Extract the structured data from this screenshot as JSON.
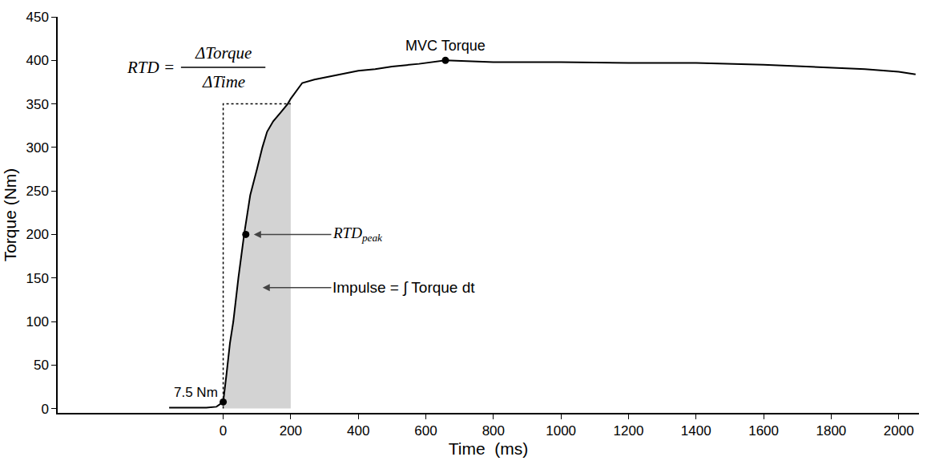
{
  "chart_data": {
    "type": "line",
    "x_label": "Time  (ms)",
    "y_label": "Torque (Nm)",
    "xlim": [
      -490,
      2060
    ],
    "ylim": [
      -5,
      450
    ],
    "xticks": [
      0,
      200,
      400,
      600,
      800,
      1000,
      1200,
      1400,
      1600,
      1800,
      2000
    ],
    "yticks": [
      0,
      50,
      100,
      150,
      200,
      250,
      300,
      350,
      400,
      450
    ],
    "grid": false,
    "series": [
      {
        "color": "#000000",
        "x": [
          -160,
          -100,
          -50,
          -20,
          0,
          10,
          20,
          30,
          45,
          62,
          80,
          100,
          116,
          130,
          148,
          170,
          191,
          200,
          234,
          270,
          320,
          400,
          450,
          500,
          580,
          658,
          800,
          1000,
          1200,
          1400,
          1600,
          1800,
          1900,
          2000,
          2050
        ],
        "values": [
          1,
          1,
          1,
          2,
          7.5,
          40,
          75,
          100,
          150,
          200,
          245,
          275,
          300,
          318,
          330,
          340,
          350,
          356,
          374,
          378,
          382,
          388,
          390,
          393,
          396,
          400,
          398,
          398,
          397,
          397,
          395,
          392,
          390,
          387,
          384
        ]
      }
    ],
    "impulse": {
      "label": "Impulse = ∫ Torque dt",
      "from": 0,
      "to": 200,
      "color": "#d3d3d3"
    },
    "rtd": {
      "lhs": "RTD =",
      "numerator": "ΔTorque",
      "denominator": "ΔTime",
      "time": [
        0,
        200
      ],
      "torque": [
        0,
        350
      ]
    },
    "points": [
      {
        "label": "7.5 Nm",
        "x": 0,
        "y": 7.5
      },
      {
        "label": "RTD",
        "label_sub": "peak",
        "x": 67,
        "y": 200
      },
      {
        "label": "MVC Torque",
        "x": 658,
        "y": 400
      }
    ]
  }
}
